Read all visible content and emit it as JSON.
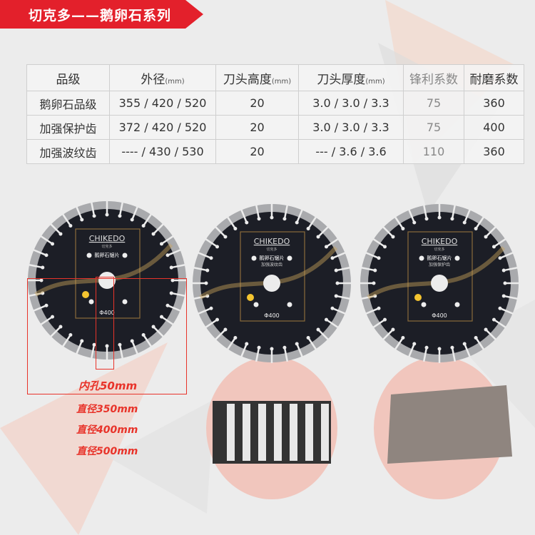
{
  "banner": {
    "title": "切克多——鹅卵石系列"
  },
  "table": {
    "headers": [
      {
        "label": "品级",
        "unit": ""
      },
      {
        "label": "外径",
        "unit": "(mm)"
      },
      {
        "label": "刀头高度",
        "unit": "(mm)"
      },
      {
        "label": "刀头厚度",
        "unit": "(mm)"
      },
      {
        "label": "锋利系数",
        "unit": ""
      },
      {
        "label": "耐磨系数",
        "unit": ""
      }
    ],
    "rows": [
      [
        "鹅卵石品级",
        "355 / 420 / 520",
        "20",
        "3.0 / 3.0 / 3.3",
        "75",
        "360"
      ],
      [
        "加强保护齿",
        "372 / 420 / 520",
        "20",
        "3.0 / 3.0 / 3.3",
        "75",
        "400"
      ],
      [
        "加强波纹齿",
        "---- / 430 / 530",
        "20",
        "--- / 3.6 / 3.6",
        "110",
        "360"
      ]
    ]
  },
  "blades": [
    {
      "brand": "CHIKEDO",
      "brand_cn": "切克多",
      "product": "鹅卵石锯片",
      "subtitle": "",
      "size": "Φ400"
    },
    {
      "brand": "CHIKEDO",
      "brand_cn": "切克多",
      "product": "鹅卵石锯片",
      "subtitle": "加强波纹齿",
      "size": "Φ400"
    },
    {
      "brand": "CHIKEDO",
      "brand_cn": "切克多",
      "product": "鹅卵石锯片",
      "subtitle": "加强保护齿",
      "size": "Φ400"
    }
  ],
  "annotations": {
    "bore": "内孔50mm",
    "d1": "直径350mm",
    "d2": "直径400mm",
    "d3": "直径500mm"
  },
  "colors": {
    "accent": "#e3202b",
    "annotation": "#e8332a",
    "blade": "#1c1e26",
    "zoom_bg": "#f1c6bd"
  }
}
